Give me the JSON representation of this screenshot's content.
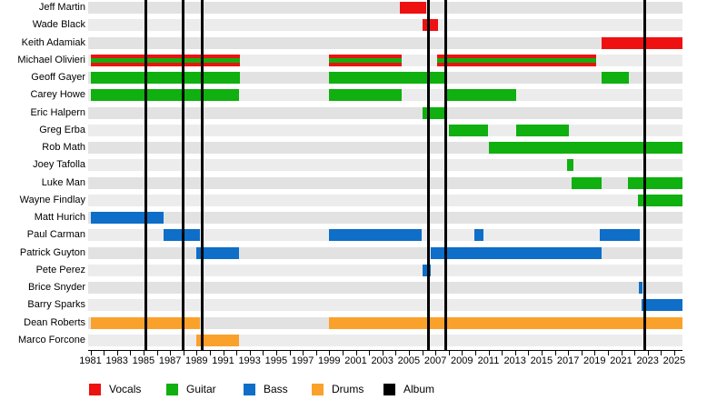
{
  "chart_data": {
    "type": "timeline",
    "description": "Band members timeline (gantt-style) with instrument color bars and album release lines",
    "axis": {
      "start_year": 1981,
      "end_year": 2025,
      "present": "present",
      "label_step": 2,
      "tick_step": 1,
      "year_labels": [
        "1981",
        "1983",
        "1985",
        "1987",
        "1989",
        "1991",
        "1993",
        "1995",
        "1997",
        "1999",
        "2001",
        "2003",
        "2005",
        "2007",
        "2009",
        "2011",
        "2013",
        "2015",
        "2017",
        "2019",
        "2021",
        "2023",
        "2025"
      ]
    },
    "role_colors": {
      "vocals": "#ee1111",
      "guitar": "#0fb00f",
      "bass": "#0e6ec8",
      "drums": "#faa12c",
      "album": "#000000"
    },
    "legend": [
      {
        "key": "vocals",
        "label": "Vocals"
      },
      {
        "key": "guitar",
        "label": "Guitar"
      },
      {
        "key": "bass",
        "label": "Bass"
      },
      {
        "key": "drums",
        "label": "Drums"
      },
      {
        "key": "album",
        "label": "Album"
      }
    ],
    "albums": {
      "years": [
        1985.2,
        1988.0,
        1989.4,
        2006.45,
        2007.8,
        2022.8
      ]
    },
    "members": [
      {
        "name": "Jeff Martin",
        "roles": [
          "vocals"
        ],
        "stints": [
          [
            2004.3,
            2006.3
          ]
        ]
      },
      {
        "name": "Wade Black",
        "roles": [
          "vocals"
        ],
        "stints": [
          [
            2006.0,
            2007.2
          ]
        ]
      },
      {
        "name": "Keith Adamiak",
        "roles": [
          "vocals"
        ],
        "stints": [
          [
            2019.5,
            "present"
          ]
        ]
      },
      {
        "name": "Michael Olivieri",
        "roles": [
          "vocals",
          "guitar"
        ],
        "stints": [
          [
            1981.0,
            1992.3
          ],
          [
            1999.0,
            2004.45
          ],
          [
            2007.1,
            2019.1
          ]
        ]
      },
      {
        "name": "Geoff Gayer",
        "roles": [
          "guitar"
        ],
        "stints": [
          [
            1981.0,
            1992.3
          ],
          [
            1999.0,
            2007.9
          ],
          [
            2019.5,
            2021.6
          ]
        ]
      },
      {
        "name": "Carey Howe",
        "roles": [
          "guitar"
        ],
        "stints": [
          [
            1981.0,
            1992.2
          ],
          [
            1999.0,
            2004.45
          ],
          [
            2007.8,
            2013.1
          ]
        ]
      },
      {
        "name": "Eric Halpern",
        "roles": [
          "guitar"
        ],
        "stints": [
          [
            2006.0,
            2007.9
          ]
        ]
      },
      {
        "name": "Greg Erba",
        "roles": [
          "guitar"
        ],
        "stints": [
          [
            2008.0,
            2011.0
          ],
          [
            2013.1,
            2017.05
          ]
        ]
      },
      {
        "name": "Rob Math",
        "roles": [
          "guitar"
        ],
        "stints": [
          [
            2011.0,
            "present"
          ]
        ]
      },
      {
        "name": "Joey Tafolla",
        "roles": [
          "guitar"
        ],
        "stints": [
          [
            2016.9,
            2017.4
          ]
        ]
      },
      {
        "name": "Luke Man",
        "roles": [
          "guitar"
        ],
        "stints": [
          [
            2017.3,
            2019.5
          ],
          [
            2021.5,
            "present"
          ]
        ]
      },
      {
        "name": "Wayne Findlay",
        "roles": [
          "guitar"
        ],
        "stints": [
          [
            2022.3,
            "present"
          ]
        ]
      },
      {
        "name": "Matt Hurich",
        "roles": [
          "bass"
        ],
        "stints": [
          [
            1981.0,
            1986.5
          ]
        ]
      },
      {
        "name": "Paul Carman",
        "roles": [
          "bass"
        ],
        "stints": [
          [
            1986.5,
            1989.25
          ],
          [
            1999.0,
            2006.0
          ],
          [
            2009.95,
            2010.6
          ],
          [
            2019.4,
            2022.4
          ]
        ]
      },
      {
        "name": "Patrick Guyton",
        "roles": [
          "bass"
        ],
        "stints": [
          [
            1989.0,
            1992.2
          ],
          [
            2006.65,
            2019.5
          ]
        ]
      },
      {
        "name": "Pete Perez",
        "roles": [
          "bass"
        ],
        "stints": [
          [
            2006.0,
            2006.65
          ]
        ]
      },
      {
        "name": "Brice Snyder",
        "roles": [
          "bass"
        ],
        "stints": [
          [
            2022.35,
            2022.6
          ]
        ]
      },
      {
        "name": "Barry Sparks",
        "roles": [
          "bass"
        ],
        "stints": [
          [
            2022.55,
            "present"
          ]
        ]
      },
      {
        "name": "Dean Roberts",
        "roles": [
          "drums"
        ],
        "stints": [
          [
            1981.0,
            1989.25
          ],
          [
            1999.0,
            "present"
          ]
        ]
      },
      {
        "name": "Marco Forcone",
        "roles": [
          "drums"
        ],
        "stints": [
          [
            1989.0,
            1992.2
          ]
        ]
      }
    ]
  }
}
